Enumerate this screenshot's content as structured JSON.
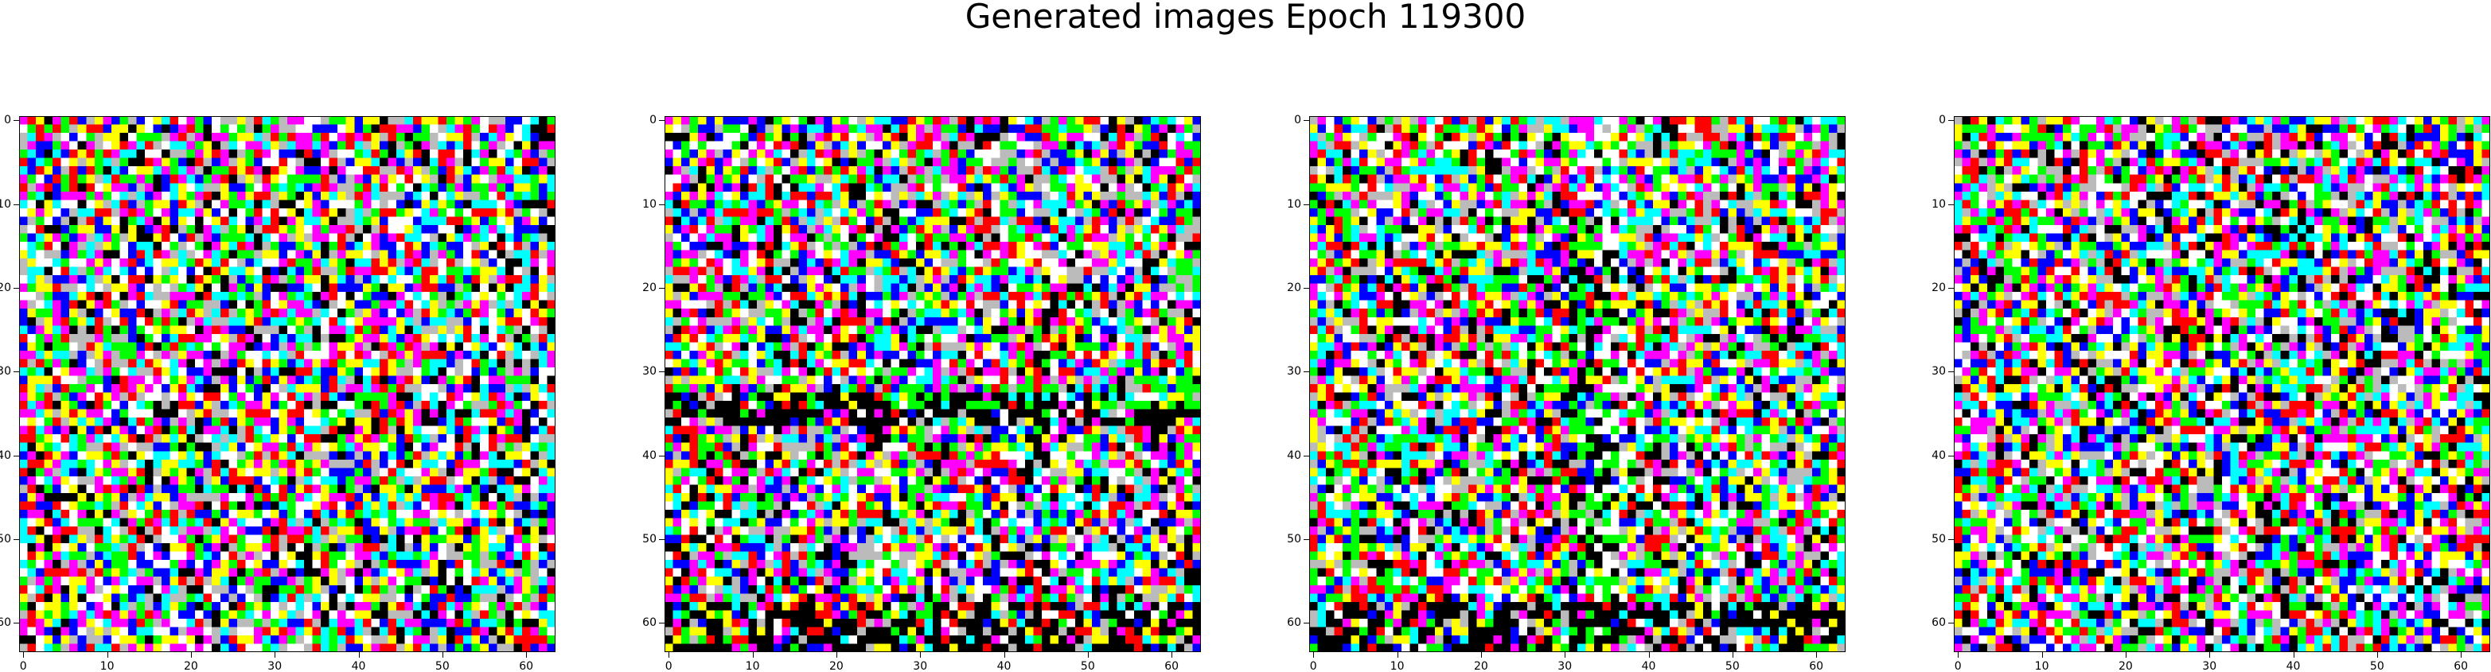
{
  "figure": {
    "title": "Generated images Epoch 119300"
  },
  "palette": [
    "#ffffff",
    "#000000",
    "#ff0000",
    "#00ff00",
    "#0000ff",
    "#ffff00",
    "#00ffff",
    "#ff00ff",
    "#bbbbbb"
  ],
  "panels": [
    {
      "name": "panel-1",
      "x_ticks": [
        "0",
        "10",
        "20",
        "30",
        "40",
        "50",
        "60"
      ],
      "y_ticks": [
        "0",
        "10",
        "20",
        "30",
        "40",
        "50",
        "60"
      ],
      "image_size": 64
    },
    {
      "name": "panel-2",
      "x_ticks": [
        "0",
        "10",
        "20",
        "30",
        "40",
        "50",
        "60"
      ],
      "y_ticks": [
        "0",
        "10",
        "20",
        "30",
        "40",
        "50",
        "60"
      ],
      "image_size": 64
    },
    {
      "name": "panel-3",
      "x_ticks": [
        "0",
        "10",
        "20",
        "30",
        "40",
        "50",
        "60"
      ],
      "y_ticks": [
        "0",
        "10",
        "20",
        "30",
        "40",
        "50",
        "60"
      ],
      "image_size": 64
    },
    {
      "name": "panel-4",
      "x_ticks": [
        "0",
        "10",
        "20",
        "30",
        "40",
        "50",
        "60"
      ],
      "y_ticks": [
        "0",
        "10",
        "20",
        "30",
        "40",
        "50",
        "60"
      ],
      "image_size": 64
    }
  ]
}
